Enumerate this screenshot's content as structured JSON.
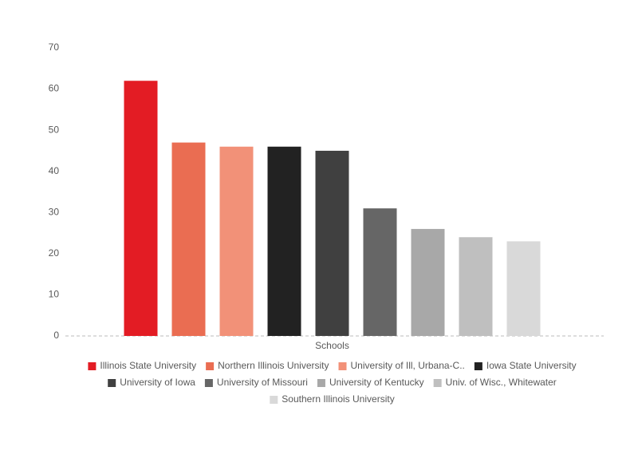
{
  "chart_data": {
    "type": "bar",
    "categories": [
      "Schools"
    ],
    "series": [
      {
        "name": "Illinois State University",
        "color": "#e31c24",
        "values": [
          62
        ]
      },
      {
        "name": "Northern Illinois University",
        "color": "#ea6d52",
        "values": [
          47
        ]
      },
      {
        "name": "University of Ill, Urbana-C..",
        "color": "#f29178",
        "values": [
          46
        ]
      },
      {
        "name": "Iowa State University",
        "color": "#222222",
        "values": [
          46
        ]
      },
      {
        "name": "University of Iowa",
        "color": "#404040",
        "values": [
          45
        ]
      },
      {
        "name": "University of Missouri",
        "color": "#666666",
        "values": [
          31
        ]
      },
      {
        "name": "University of Kentucky",
        "color": "#a8a8a8",
        "values": [
          26
        ]
      },
      {
        "name": "Univ. of Wisc., Whitewater",
        "color": "#bfbfbf",
        "values": [
          24
        ]
      },
      {
        "name": "Southern Illinois University",
        "color": "#d9d9d9",
        "values": [
          23
        ]
      }
    ],
    "ylim": [
      0,
      70
    ],
    "yticks": [
      0,
      10,
      20,
      30,
      40,
      50,
      60,
      70
    ],
    "grid": false,
    "legend": "bottom"
  }
}
